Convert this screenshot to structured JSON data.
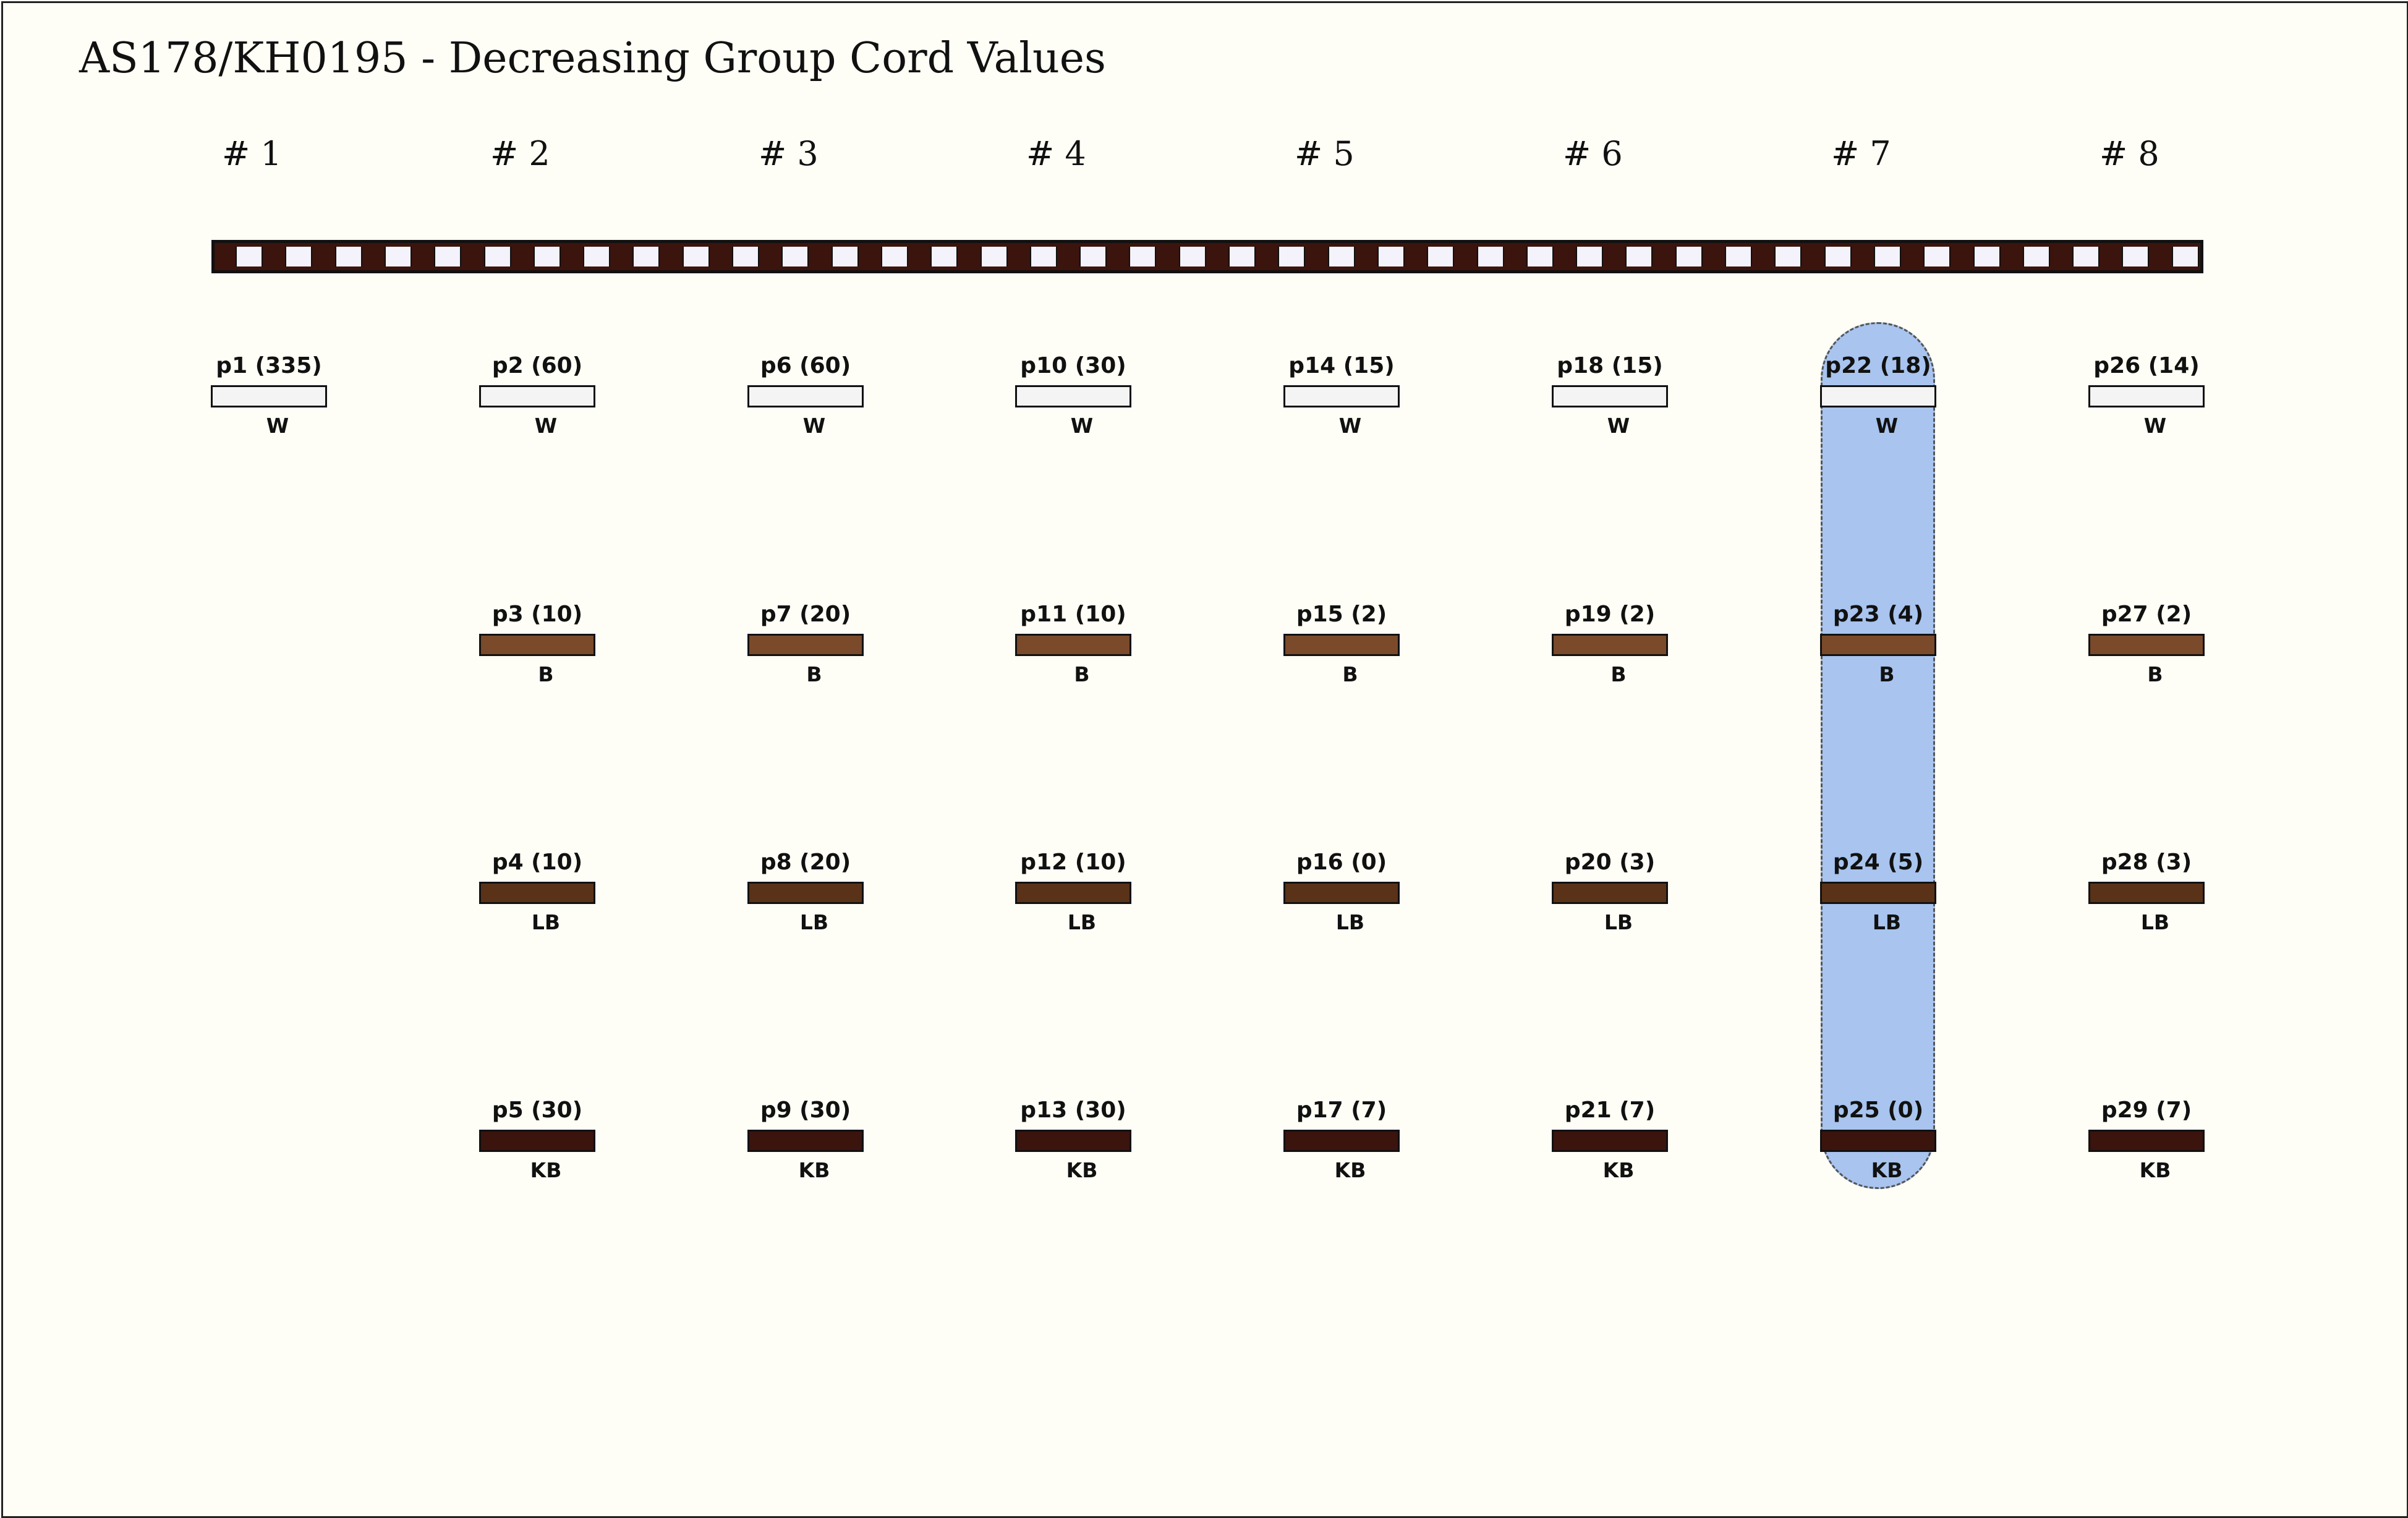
{
  "title": "AS178/KH0195 - Decreasing Group Cord Values",
  "colors": {
    "W": "#f4f4f4",
    "B": "#7a4a2a",
    "LB": "#5a3218",
    "KB": "#3a140d",
    "highlight": "#a8c4ef",
    "background": "#fffef6"
  },
  "highlighted_group": 7,
  "groups": [
    {
      "label": "# 1",
      "cords": [
        {
          "name": "p1 (335)",
          "color": "W"
        }
      ]
    },
    {
      "label": "# 2",
      "cords": [
        {
          "name": "p2 (60)",
          "color": "W"
        },
        {
          "name": "p3 (10)",
          "color": "B"
        },
        {
          "name": "p4 (10)",
          "color": "LB"
        },
        {
          "name": "p5 (30)",
          "color": "KB"
        }
      ]
    },
    {
      "label": "# 3",
      "cords": [
        {
          "name": "p6 (60)",
          "color": "W"
        },
        {
          "name": "p7 (20)",
          "color": "B"
        },
        {
          "name": "p8 (20)",
          "color": "LB"
        },
        {
          "name": "p9 (30)",
          "color": "KB"
        }
      ]
    },
    {
      "label": "# 4",
      "cords": [
        {
          "name": "p10 (30)",
          "color": "W"
        },
        {
          "name": "p11 (10)",
          "color": "B"
        },
        {
          "name": "p12 (10)",
          "color": "LB"
        },
        {
          "name": "p13 (30)",
          "color": "KB"
        }
      ]
    },
    {
      "label": "# 5",
      "cords": [
        {
          "name": "p14 (15)",
          "color": "W"
        },
        {
          "name": "p15 (2)",
          "color": "B"
        },
        {
          "name": "p16 (0)",
          "color": "LB"
        },
        {
          "name": "p17 (7)",
          "color": "KB"
        }
      ]
    },
    {
      "label": "# 6",
      "cords": [
        {
          "name": "p18 (15)",
          "color": "W"
        },
        {
          "name": "p19 (2)",
          "color": "B"
        },
        {
          "name": "p20 (3)",
          "color": "LB"
        },
        {
          "name": "p21 (7)",
          "color": "KB"
        }
      ]
    },
    {
      "label": "# 7",
      "cords": [
        {
          "name": "p22 (18)",
          "color": "W"
        },
        {
          "name": "p23 (4)",
          "color": "B"
        },
        {
          "name": "p24 (5)",
          "color": "LB"
        },
        {
          "name": "p25 (0)",
          "color": "KB"
        }
      ]
    },
    {
      "label": "# 8",
      "cords": [
        {
          "name": "p26 (14)",
          "color": "W"
        },
        {
          "name": "p27 (2)",
          "color": "B"
        },
        {
          "name": "p28 (3)",
          "color": "LB"
        },
        {
          "name": "p29 (7)",
          "color": "KB"
        }
      ]
    }
  ]
}
